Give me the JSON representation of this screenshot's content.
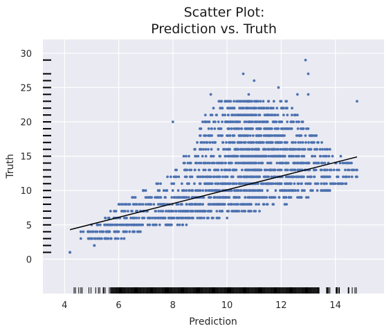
{
  "chart_data": {
    "type": "scatter",
    "title_lines": [
      "Scatter Plot:",
      "Prediction vs. Truth"
    ],
    "xlabel": "Prediction",
    "ylabel": "Truth",
    "xlim": [
      3.2,
      15.8
    ],
    "ylim": [
      -5,
      32
    ],
    "xticks": [
      4,
      6,
      8,
      10,
      12,
      14
    ],
    "yticks": [
      0,
      5,
      10,
      15,
      20,
      25,
      30
    ],
    "grid": true,
    "background": "#eaeaf2",
    "grid_color": "#ffffff",
    "point_color": "#4c72b0",
    "line_color": "#000000",
    "rug_color": "#000000",
    "regression_line": {
      "x": [
        4.2,
        14.8
      ],
      "y": [
        4.3,
        14.9
      ]
    },
    "bins": [
      {
        "y": 1,
        "xmin": 4.2,
        "xmax": 4.2
      },
      {
        "y": 2,
        "xmin": 5.1,
        "xmax": 5.1
      },
      {
        "y": 3,
        "xmin": 4.6,
        "xmax": 6.2
      },
      {
        "y": 4,
        "xmin": 4.6,
        "xmax": 6.8
      },
      {
        "y": 5,
        "xmin": 5.0,
        "xmax": 8.5
      },
      {
        "y": 6,
        "xmin": 5.5,
        "xmax": 10.0
      },
      {
        "y": 7,
        "xmin": 5.7,
        "xmax": 11.2
      },
      {
        "y": 8,
        "xmin": 6.0,
        "xmax": 12.2
      },
      {
        "y": 9,
        "xmin": 6.5,
        "xmax": 13.0
      },
      {
        "y": 10,
        "xmin": 6.9,
        "xmax": 13.8
      },
      {
        "y": 11,
        "xmin": 7.4,
        "xmax": 14.4
      },
      {
        "y": 12,
        "xmin": 7.8,
        "xmax": 14.8
      },
      {
        "y": 13,
        "xmin": 8.1,
        "xmax": 14.8
      },
      {
        "y": 14,
        "xmin": 8.4,
        "xmax": 14.6
      },
      {
        "y": 15,
        "xmin": 8.4,
        "xmax": 14.2
      },
      {
        "y": 16,
        "xmin": 8.8,
        "xmax": 13.8
      },
      {
        "y": 17,
        "xmin": 8.9,
        "xmax": 13.5
      },
      {
        "y": 18,
        "xmin": 9.0,
        "xmax": 13.3
      },
      {
        "y": 19,
        "xmin": 9.0,
        "xmax": 13.0
      },
      {
        "y": 20,
        "xmin": 9.1,
        "xmax": 12.8
      },
      {
        "y": 21,
        "xmin": 9.4,
        "xmax": 12.6
      },
      {
        "y": 22,
        "xmin": 9.5,
        "xmax": 12.4
      },
      {
        "y": 23,
        "xmin": 9.7,
        "xmax": 12.2
      }
    ],
    "outliers": [
      {
        "x": 4.2,
        "y": 1
      },
      {
        "x": 8.0,
        "y": 20
      },
      {
        "x": 9.2,
        "y": 21
      },
      {
        "x": 9.4,
        "y": 24
      },
      {
        "x": 9.8,
        "y": 23
      },
      {
        "x": 10.6,
        "y": 27
      },
      {
        "x": 10.8,
        "y": 24
      },
      {
        "x": 11.0,
        "y": 26
      },
      {
        "x": 11.5,
        "y": 22
      },
      {
        "x": 11.9,
        "y": 25
      },
      {
        "x": 12.6,
        "y": 24
      },
      {
        "x": 12.9,
        "y": 29
      },
      {
        "x": 13.0,
        "y": 27
      },
      {
        "x": 13.0,
        "y": 24
      },
      {
        "x": 12.5,
        "y": 21
      },
      {
        "x": 14.8,
        "y": 23
      }
    ],
    "x_rug": {
      "min": 4.2,
      "max": 14.8,
      "dense_min": 5.7,
      "dense_max": 13.4
    },
    "y_rug": {
      "values": [
        1,
        2,
        3,
        4,
        5,
        6,
        7,
        8,
        9,
        10,
        11,
        12,
        13,
        14,
        15,
        16,
        17,
        18,
        19,
        20,
        21,
        22,
        23,
        24,
        25,
        26,
        27,
        29
      ]
    }
  }
}
